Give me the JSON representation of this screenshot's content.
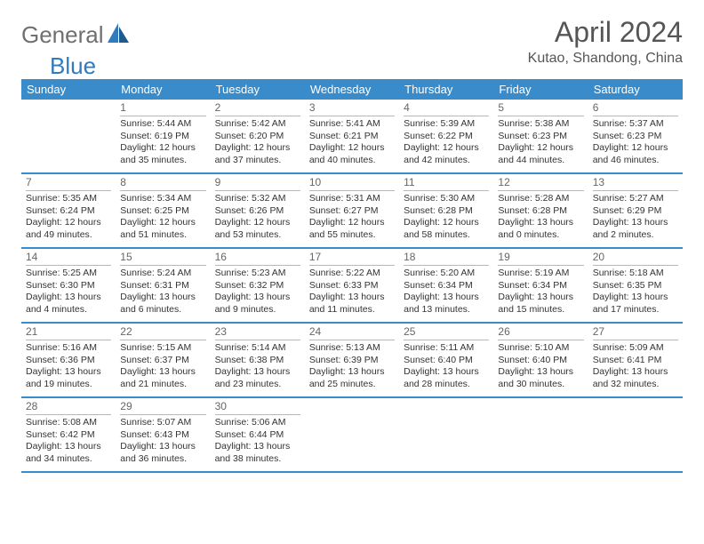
{
  "brand": {
    "part1": "General",
    "part2": "Blue"
  },
  "title": "April 2024",
  "subtitle": "Kutao, Shandong, China",
  "colors": {
    "header_bg": "#3a8bc9",
    "header_text": "#ffffff",
    "row_divider": "#3a8bc9",
    "daynum_underline": "#b8b8b8",
    "body_text": "#333333",
    "daynum_text": "#666666",
    "title_text": "#555555"
  },
  "day_headers": [
    "Sunday",
    "Monday",
    "Tuesday",
    "Wednesday",
    "Thursday",
    "Friday",
    "Saturday"
  ],
  "weeks": [
    [
      {
        "day": "",
        "sunrise": "",
        "sunset": "",
        "daylight1": "",
        "daylight2": ""
      },
      {
        "day": "1",
        "sunrise": "Sunrise: 5:44 AM",
        "sunset": "Sunset: 6:19 PM",
        "daylight1": "Daylight: 12 hours",
        "daylight2": "and 35 minutes."
      },
      {
        "day": "2",
        "sunrise": "Sunrise: 5:42 AM",
        "sunset": "Sunset: 6:20 PM",
        "daylight1": "Daylight: 12 hours",
        "daylight2": "and 37 minutes."
      },
      {
        "day": "3",
        "sunrise": "Sunrise: 5:41 AM",
        "sunset": "Sunset: 6:21 PM",
        "daylight1": "Daylight: 12 hours",
        "daylight2": "and 40 minutes."
      },
      {
        "day": "4",
        "sunrise": "Sunrise: 5:39 AM",
        "sunset": "Sunset: 6:22 PM",
        "daylight1": "Daylight: 12 hours",
        "daylight2": "and 42 minutes."
      },
      {
        "day": "5",
        "sunrise": "Sunrise: 5:38 AM",
        "sunset": "Sunset: 6:23 PM",
        "daylight1": "Daylight: 12 hours",
        "daylight2": "and 44 minutes."
      },
      {
        "day": "6",
        "sunrise": "Sunrise: 5:37 AM",
        "sunset": "Sunset: 6:23 PM",
        "daylight1": "Daylight: 12 hours",
        "daylight2": "and 46 minutes."
      }
    ],
    [
      {
        "day": "7",
        "sunrise": "Sunrise: 5:35 AM",
        "sunset": "Sunset: 6:24 PM",
        "daylight1": "Daylight: 12 hours",
        "daylight2": "and 49 minutes."
      },
      {
        "day": "8",
        "sunrise": "Sunrise: 5:34 AM",
        "sunset": "Sunset: 6:25 PM",
        "daylight1": "Daylight: 12 hours",
        "daylight2": "and 51 minutes."
      },
      {
        "day": "9",
        "sunrise": "Sunrise: 5:32 AM",
        "sunset": "Sunset: 6:26 PM",
        "daylight1": "Daylight: 12 hours",
        "daylight2": "and 53 minutes."
      },
      {
        "day": "10",
        "sunrise": "Sunrise: 5:31 AM",
        "sunset": "Sunset: 6:27 PM",
        "daylight1": "Daylight: 12 hours",
        "daylight2": "and 55 minutes."
      },
      {
        "day": "11",
        "sunrise": "Sunrise: 5:30 AM",
        "sunset": "Sunset: 6:28 PM",
        "daylight1": "Daylight: 12 hours",
        "daylight2": "and 58 minutes."
      },
      {
        "day": "12",
        "sunrise": "Sunrise: 5:28 AM",
        "sunset": "Sunset: 6:28 PM",
        "daylight1": "Daylight: 13 hours",
        "daylight2": "and 0 minutes."
      },
      {
        "day": "13",
        "sunrise": "Sunrise: 5:27 AM",
        "sunset": "Sunset: 6:29 PM",
        "daylight1": "Daylight: 13 hours",
        "daylight2": "and 2 minutes."
      }
    ],
    [
      {
        "day": "14",
        "sunrise": "Sunrise: 5:25 AM",
        "sunset": "Sunset: 6:30 PM",
        "daylight1": "Daylight: 13 hours",
        "daylight2": "and 4 minutes."
      },
      {
        "day": "15",
        "sunrise": "Sunrise: 5:24 AM",
        "sunset": "Sunset: 6:31 PM",
        "daylight1": "Daylight: 13 hours",
        "daylight2": "and 6 minutes."
      },
      {
        "day": "16",
        "sunrise": "Sunrise: 5:23 AM",
        "sunset": "Sunset: 6:32 PM",
        "daylight1": "Daylight: 13 hours",
        "daylight2": "and 9 minutes."
      },
      {
        "day": "17",
        "sunrise": "Sunrise: 5:22 AM",
        "sunset": "Sunset: 6:33 PM",
        "daylight1": "Daylight: 13 hours",
        "daylight2": "and 11 minutes."
      },
      {
        "day": "18",
        "sunrise": "Sunrise: 5:20 AM",
        "sunset": "Sunset: 6:34 PM",
        "daylight1": "Daylight: 13 hours",
        "daylight2": "and 13 minutes."
      },
      {
        "day": "19",
        "sunrise": "Sunrise: 5:19 AM",
        "sunset": "Sunset: 6:34 PM",
        "daylight1": "Daylight: 13 hours",
        "daylight2": "and 15 minutes."
      },
      {
        "day": "20",
        "sunrise": "Sunrise: 5:18 AM",
        "sunset": "Sunset: 6:35 PM",
        "daylight1": "Daylight: 13 hours",
        "daylight2": "and 17 minutes."
      }
    ],
    [
      {
        "day": "21",
        "sunrise": "Sunrise: 5:16 AM",
        "sunset": "Sunset: 6:36 PM",
        "daylight1": "Daylight: 13 hours",
        "daylight2": "and 19 minutes."
      },
      {
        "day": "22",
        "sunrise": "Sunrise: 5:15 AM",
        "sunset": "Sunset: 6:37 PM",
        "daylight1": "Daylight: 13 hours",
        "daylight2": "and 21 minutes."
      },
      {
        "day": "23",
        "sunrise": "Sunrise: 5:14 AM",
        "sunset": "Sunset: 6:38 PM",
        "daylight1": "Daylight: 13 hours",
        "daylight2": "and 23 minutes."
      },
      {
        "day": "24",
        "sunrise": "Sunrise: 5:13 AM",
        "sunset": "Sunset: 6:39 PM",
        "daylight1": "Daylight: 13 hours",
        "daylight2": "and 25 minutes."
      },
      {
        "day": "25",
        "sunrise": "Sunrise: 5:11 AM",
        "sunset": "Sunset: 6:40 PM",
        "daylight1": "Daylight: 13 hours",
        "daylight2": "and 28 minutes."
      },
      {
        "day": "26",
        "sunrise": "Sunrise: 5:10 AM",
        "sunset": "Sunset: 6:40 PM",
        "daylight1": "Daylight: 13 hours",
        "daylight2": "and 30 minutes."
      },
      {
        "day": "27",
        "sunrise": "Sunrise: 5:09 AM",
        "sunset": "Sunset: 6:41 PM",
        "daylight1": "Daylight: 13 hours",
        "daylight2": "and 32 minutes."
      }
    ],
    [
      {
        "day": "28",
        "sunrise": "Sunrise: 5:08 AM",
        "sunset": "Sunset: 6:42 PM",
        "daylight1": "Daylight: 13 hours",
        "daylight2": "and 34 minutes."
      },
      {
        "day": "29",
        "sunrise": "Sunrise: 5:07 AM",
        "sunset": "Sunset: 6:43 PM",
        "daylight1": "Daylight: 13 hours",
        "daylight2": "and 36 minutes."
      },
      {
        "day": "30",
        "sunrise": "Sunrise: 5:06 AM",
        "sunset": "Sunset: 6:44 PM",
        "daylight1": "Daylight: 13 hours",
        "daylight2": "and 38 minutes."
      },
      {
        "day": "",
        "sunrise": "",
        "sunset": "",
        "daylight1": "",
        "daylight2": ""
      },
      {
        "day": "",
        "sunrise": "",
        "sunset": "",
        "daylight1": "",
        "daylight2": ""
      },
      {
        "day": "",
        "sunrise": "",
        "sunset": "",
        "daylight1": "",
        "daylight2": ""
      },
      {
        "day": "",
        "sunrise": "",
        "sunset": "",
        "daylight1": "",
        "daylight2": ""
      }
    ]
  ]
}
